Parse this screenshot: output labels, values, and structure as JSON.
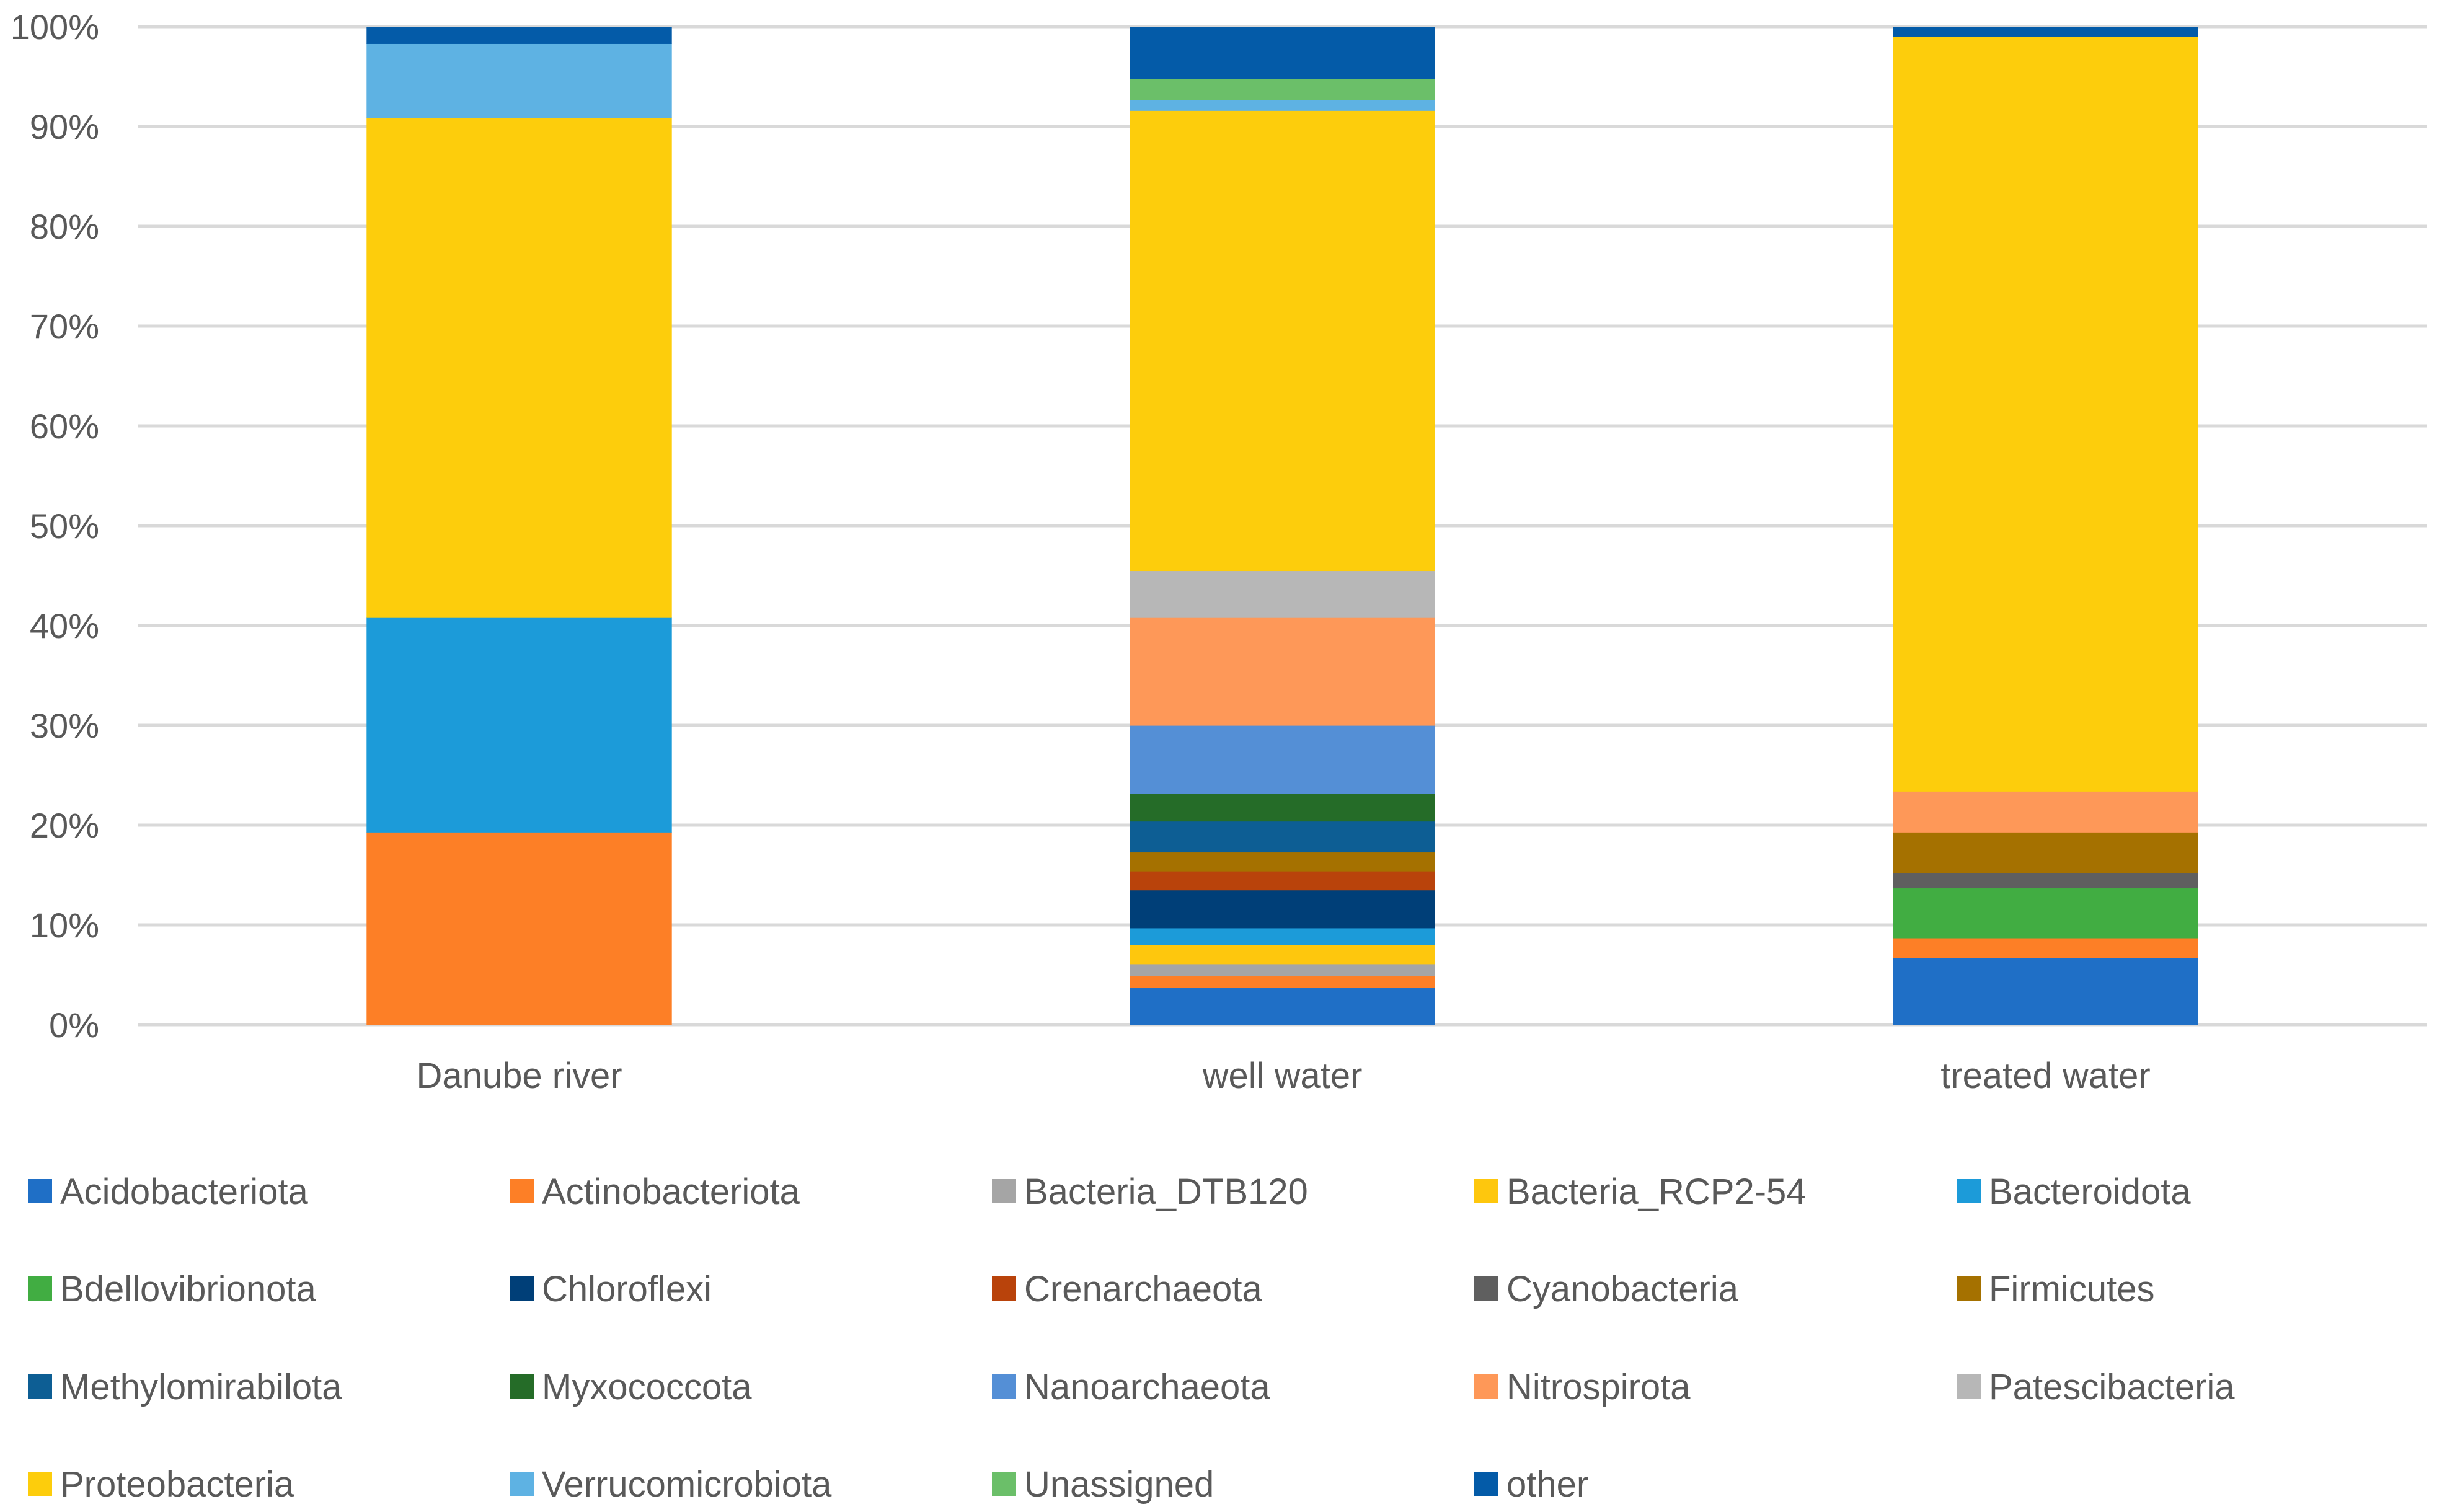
{
  "chart_data": {
    "type": "bar",
    "stacked": true,
    "percent": true,
    "title": "",
    "xlabel": "",
    "ylabel": "",
    "ylim": [
      0,
      100
    ],
    "y_ticks": [
      "0%",
      "10%",
      "20%",
      "30%",
      "40%",
      "50%",
      "60%",
      "70%",
      "80%",
      "90%",
      "100%"
    ],
    "grid": true,
    "legend_position": "bottom",
    "categories": [
      "Danube river",
      "well water",
      "treated water"
    ],
    "series": [
      {
        "name": "Acidobacteriota",
        "color": "#1f6fc6",
        "values": [
          0.0,
          3.7,
          6.7
        ]
      },
      {
        "name": "Actinobacteriota",
        "color": "#fd7f26",
        "values": [
          19.3,
          1.2,
          2.0
        ]
      },
      {
        "name": "Bacteria_DTB120",
        "color": "#a5a5a5",
        "values": [
          0.0,
          1.2,
          0.0
        ]
      },
      {
        "name": "Bacteria_RCP2-54",
        "color": "#fec70d",
        "values": [
          0.0,
          1.9,
          0.0
        ]
      },
      {
        "name": "Bacteroidota",
        "color": "#1c9bd9",
        "values": [
          21.5,
          1.7,
          0.0
        ]
      },
      {
        "name": "Bdellovibrionota",
        "color": "#41ad42",
        "values": [
          0.0,
          0.0,
          5.0
        ]
      },
      {
        "name": "Chloroflexi",
        "color": "#003f78",
        "values": [
          0.0,
          3.8,
          0.0
        ]
      },
      {
        "name": "Crenarchaeota",
        "color": "#b9430b",
        "values": [
          0.0,
          1.9,
          0.0
        ]
      },
      {
        "name": "Cyanobacteria",
        "color": "#5f5f5f",
        "values": [
          0.0,
          0.0,
          1.5
        ]
      },
      {
        "name": "Firmicutes",
        "color": "#a57100",
        "values": [
          0.0,
          1.9,
          4.1
        ]
      },
      {
        "name": "Methylomirabilota",
        "color": "#0d5e94",
        "values": [
          0.0,
          3.1,
          0.0
        ]
      },
      {
        "name": "Myxococcota",
        "color": "#256c28",
        "values": [
          0.0,
          2.8,
          0.0
        ]
      },
      {
        "name": "Nanoarchaeota",
        "color": "#548fd6",
        "values": [
          0.0,
          6.8,
          0.0
        ]
      },
      {
        "name": "Nitrospirota",
        "color": "#fe9858",
        "values": [
          0.0,
          10.8,
          4.1
        ]
      },
      {
        "name": "Patescibacteria",
        "color": "#b7b7b7",
        "values": [
          0.0,
          4.7,
          0.0
        ]
      },
      {
        "name": "Proteobacteria",
        "color": "#fdcd0c",
        "values": [
          50.1,
          46.1,
          75.6
        ]
      },
      {
        "name": "Verrucomicrobiota",
        "color": "#5eb2e3",
        "values": [
          7.4,
          1.1,
          0.0
        ]
      },
      {
        "name": "Unassigned",
        "color": "#6bbf69",
        "values": [
          0.0,
          2.1,
          0.0
        ]
      },
      {
        "name": "other",
        "color": "#045ba8",
        "values": [
          1.7,
          5.2,
          1.0
        ]
      }
    ]
  }
}
